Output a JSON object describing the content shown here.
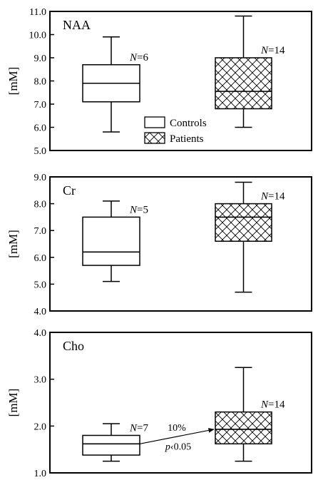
{
  "chart_data": [
    {
      "type": "box",
      "title": "NAA",
      "ylabel": "[mM]",
      "ylim": [
        5.0,
        11.0
      ],
      "yticks": [
        "5.0",
        "6.0",
        "7.0",
        "8.0",
        "9.0",
        "10.0",
        "11.0"
      ],
      "legend": {
        "placement": "bottom-center",
        "entries": [
          "Controls",
          "Patients"
        ]
      },
      "groups": [
        {
          "name": "Controls",
          "pattern": "none",
          "n_label": "N=6",
          "min": 5.8,
          "q1": 7.1,
          "median": 7.9,
          "q3": 8.7,
          "max": 9.9
        },
        {
          "name": "Patients",
          "pattern": "crosshatch",
          "n_label": "N=14",
          "min": 6.0,
          "q1": 6.8,
          "median": 7.55,
          "q3": 9.0,
          "max": 10.8
        }
      ]
    },
    {
      "type": "box",
      "title": "Cr",
      "ylabel": "[mM]",
      "ylim": [
        4.0,
        9.0
      ],
      "yticks": [
        "4.0",
        "5.0",
        "6.0",
        "7.0",
        "8.0",
        "9.0"
      ],
      "groups": [
        {
          "name": "Controls",
          "pattern": "none",
          "n_label": "N=5",
          "min": 5.1,
          "q1": 5.7,
          "median": 6.2,
          "q3": 7.5,
          "max": 8.1
        },
        {
          "name": "Patients",
          "pattern": "crosshatch",
          "n_label": "N=14",
          "min": 4.7,
          "q1": 6.6,
          "median": 7.5,
          "q3": 8.0,
          "max": 8.8
        }
      ]
    },
    {
      "type": "box",
      "title": "Cho",
      "ylabel": "[mM]",
      "ylim": [
        1.0,
        4.0
      ],
      "yticks": [
        "1.0",
        "2.0",
        "3.0",
        "4.0"
      ],
      "annotation": {
        "text1": "10%",
        "text2": "p‹0.05"
      },
      "groups": [
        {
          "name": "Controls",
          "pattern": "none",
          "n_label": "N=7",
          "min": 1.25,
          "q1": 1.38,
          "median": 1.62,
          "q3": 1.8,
          "max": 2.05
        },
        {
          "name": "Patients",
          "pattern": "crosshatch",
          "n_label": "N=14",
          "min": 1.25,
          "q1": 1.62,
          "median": 1.93,
          "q3": 2.3,
          "max": 3.25
        }
      ]
    }
  ]
}
